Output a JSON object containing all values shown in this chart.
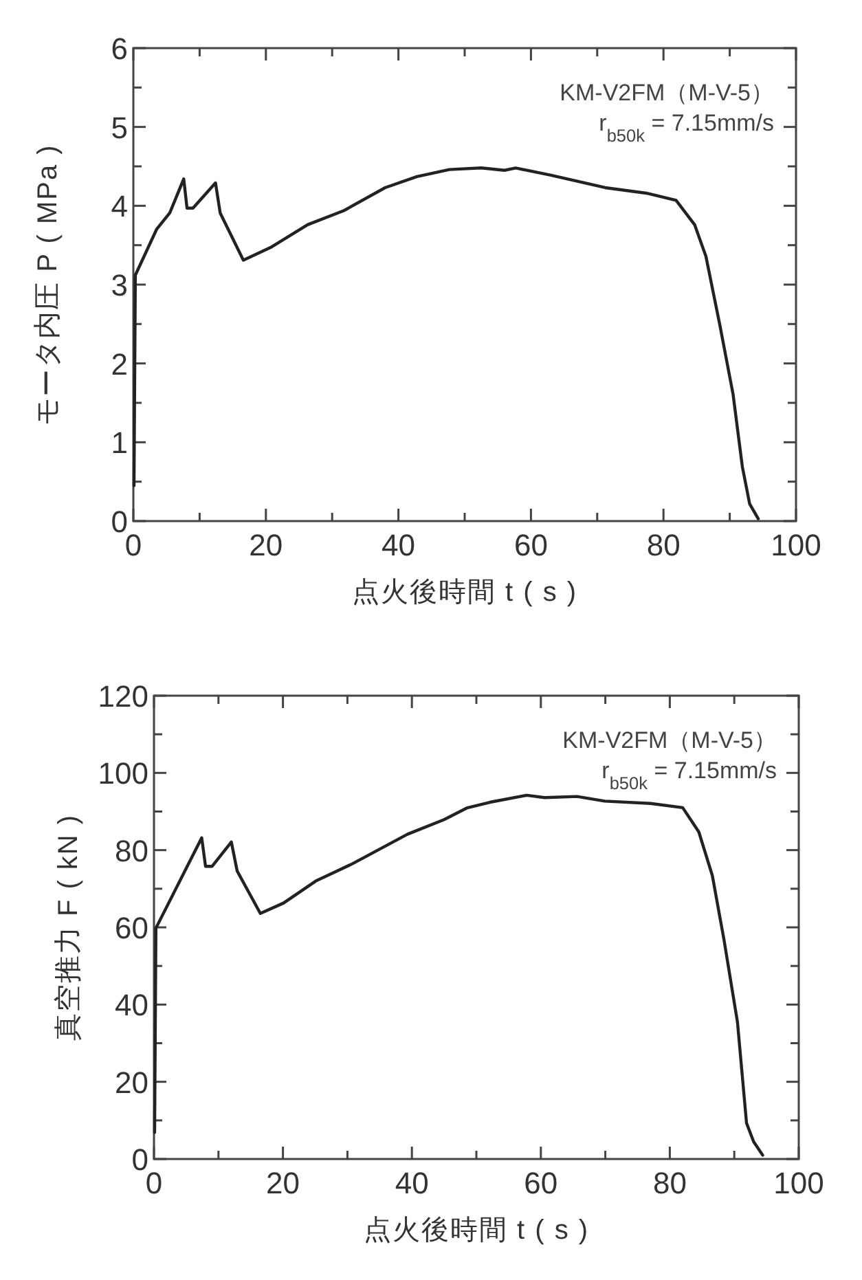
{
  "chart_data": [
    {
      "type": "line",
      "xlabel": "点火後時間 t ( s )",
      "ylabel": "モータ内圧 P ( MPa )",
      "xlim": [
        0,
        100
      ],
      "ylim": [
        0,
        6
      ],
      "xticks": [
        0,
        {
          "value": 10,
          "label": null
        },
        20,
        {
          "value": 30,
          "label": null
        },
        40,
        {
          "value": 50,
          "label": null
        },
        60,
        {
          "value": 70,
          "label": null
        },
        80,
        {
          "value": 90,
          "label": null
        },
        100
      ],
      "yticks": [
        0,
        {
          "value": 0.5,
          "label": null
        },
        1,
        {
          "value": 1.5,
          "label": null
        },
        2,
        {
          "value": 2.5,
          "label": null
        },
        3,
        {
          "value": 3.5,
          "label": null
        },
        4,
        {
          "value": 4.5,
          "label": null
        },
        5,
        {
          "value": 5.5,
          "label": null
        },
        6
      ],
      "annotations": [
        "KM-V2FM（M-V-5）",
        "r$_{b50k}$ = 7.15mm/s"
      ],
      "grid": false,
      "marker": "none",
      "line_style": "solid",
      "series": [
        {
          "color": "#222222",
          "x": [
            0.1,
            0.3,
            3.5,
            5.5,
            7.6,
            8.1,
            9.0,
            12.4,
            13.1,
            16.6,
            20.7,
            26.3,
            31.8,
            38.0,
            42.8,
            47.7,
            52.5,
            56.0,
            57.7,
            62.9,
            71.2,
            77.4,
            81.9,
            84.7,
            86.4,
            88.5,
            90.5,
            91.9,
            93.0,
            94.3
          ],
          "values": [
            0.45,
            3.12,
            3.7,
            3.91,
            4.34,
            3.97,
            3.97,
            4.29,
            3.91,
            3.31,
            3.47,
            3.76,
            3.94,
            4.23,
            4.37,
            4.46,
            4.48,
            4.45,
            4.48,
            4.39,
            4.23,
            4.16,
            4.07,
            3.76,
            3.36,
            2.49,
            1.61,
            0.69,
            0.22,
            0.03
          ]
        }
      ]
    },
    {
      "type": "line",
      "xlabel": "点火後時間 t ( s )",
      "ylabel": "真空推力 F ( kN )",
      "xlim": [
        0,
        100
      ],
      "ylim": [
        0,
        120
      ],
      "xticks": [
        0,
        {
          "value": 10,
          "label": null
        },
        20,
        {
          "value": 30,
          "label": null
        },
        40,
        {
          "value": 50,
          "label": null
        },
        60,
        {
          "value": 70,
          "label": null
        },
        80,
        {
          "value": 90,
          "label": null
        },
        100
      ],
      "yticks": [
        0,
        {
          "value": 10,
          "label": null
        },
        20,
        {
          "value": 30,
          "label": null
        },
        40,
        {
          "value": 50,
          "label": null
        },
        60,
        {
          "value": 70,
          "label": null
        },
        80,
        {
          "value": 90,
          "label": null
        },
        100,
        {
          "value": 110,
          "label": null
        },
        120
      ],
      "annotations": [
        "KM-V2FM（M-V-5）",
        "r$_{b50k}$ = 7.15mm/s"
      ],
      "grid": false,
      "marker": "none",
      "line_style": "solid",
      "series": [
        {
          "color": "#222222",
          "x": [
            0.1,
            0.3,
            3.7,
            7.4,
            8.0,
            9.0,
            12.0,
            12.9,
            16.5,
            20.1,
            25.1,
            30.7,
            39.3,
            45.0,
            48.5,
            52.1,
            57.8,
            60.6,
            65.6,
            69.9,
            77.0,
            82.0,
            84.5,
            86.6,
            88.4,
            90.5,
            91.9,
            93.0,
            94.4
          ],
          "values": [
            6.9,
            59.8,
            71.0,
            83.2,
            75.8,
            75.8,
            82.1,
            74.6,
            63.6,
            66.3,
            72.0,
            76.4,
            84.1,
            87.9,
            90.9,
            92.4,
            94.2,
            93.6,
            93.9,
            92.7,
            92.1,
            91.0,
            84.7,
            73.4,
            56.8,
            35.4,
            9.3,
            4.5,
            1.0
          ]
        }
      ]
    }
  ]
}
